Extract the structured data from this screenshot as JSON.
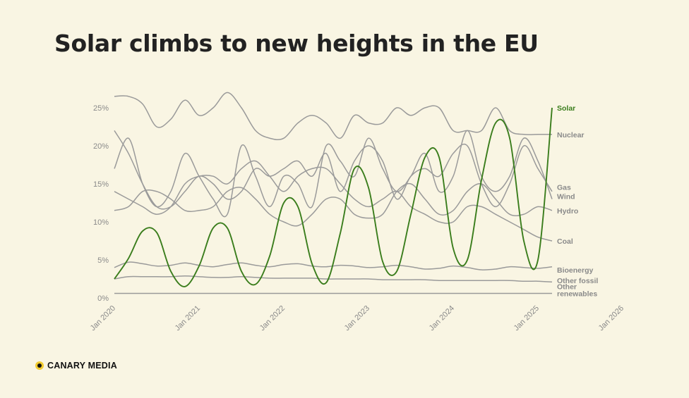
{
  "title": "Solar climbs to new heights in the EU",
  "brand": {
    "name": "CANARY MEDIA",
    "logo_icon": "canary-dot-icon",
    "dot_color": "#f2cb2f"
  },
  "chart_data": {
    "type": "line",
    "y_ticks": [
      "0%",
      "5%",
      "10%",
      "15%",
      "20%",
      "25%"
    ],
    "ylim": [
      0,
      25
    ],
    "x_ticks": [
      "Jan 2020",
      "Jan 2021",
      "Jan 2022",
      "Jan 2023",
      "Jan 2024",
      "Jan 2025",
      "Jan 2026"
    ],
    "xlim": [
      "2020-01",
      "2026-05"
    ],
    "x_step_months": 2,
    "series": [
      {
        "name": "Nuclear",
        "color": "#9a9a9a",
        "values": [
          26.5,
          26.5,
          25.5,
          22.5,
          23.5,
          26,
          24,
          25,
          27,
          25,
          22,
          21,
          21,
          23,
          24,
          23,
          21,
          24,
          23,
          23,
          25,
          24,
          25,
          25,
          22,
          22,
          22,
          25,
          22,
          21.5,
          21.5,
          21.5
        ]
      },
      {
        "name": "Gas",
        "color": "#9a9a9a",
        "values": [
          22,
          19,
          15,
          12,
          12,
          14,
          16,
          15,
          13,
          14,
          17,
          16,
          17,
          18,
          16,
          19,
          14,
          18,
          20,
          18,
          13,
          16,
          17,
          16,
          19,
          20,
          15,
          12,
          15,
          20,
          17,
          14
        ]
      },
      {
        "name": "Wind",
        "color": "#9a9a9a",
        "values": [
          17,
          21,
          15,
          12,
          14,
          19,
          16,
          13,
          11,
          20,
          16,
          12,
          16,
          15,
          12,
          20,
          18,
          16,
          21,
          17,
          14,
          16,
          19,
          14,
          16,
          22,
          16,
          14,
          16,
          21,
          18,
          13
        ]
      },
      {
        "name": "Hydro",
        "color": "#9a9a9a",
        "values": [
          11.5,
          12,
          14,
          14,
          13,
          11.5,
          11.5,
          12,
          14,
          14.5,
          13,
          11,
          10,
          9.5,
          11,
          13,
          13,
          11,
          10.5,
          11,
          14,
          15,
          13,
          11,
          11.5,
          14,
          15,
          13,
          11,
          11,
          12,
          11.5
        ]
      },
      {
        "name": "Coal",
        "color": "#9a9a9a",
        "values": [
          14,
          13,
          12,
          11,
          12,
          15,
          16,
          16,
          15,
          17,
          18,
          16,
          14,
          16,
          17,
          17,
          15,
          13,
          12,
          13,
          14,
          12,
          11,
          10,
          10,
          12,
          12,
          11,
          10,
          9,
          8,
          7.5
        ]
      },
      {
        "name": "Bioenergy",
        "color": "#9a9a9a",
        "values": [
          4,
          4.7,
          4.5,
          4.2,
          4.3,
          4.6,
          4.3,
          4.1,
          4.4,
          4.6,
          4.3,
          4.1,
          4.4,
          4.5,
          4.2,
          4.1,
          4.3,
          4.2,
          4,
          4.1,
          4.3,
          4.1,
          3.8,
          3.9,
          4.2,
          4,
          3.7,
          3.8,
          4.1,
          4,
          3.9,
          4.1
        ]
      },
      {
        "name": "Other fossil",
        "color": "#9a9a9a",
        "values": [
          2.5,
          2.8,
          2.8,
          2.8,
          2.8,
          2.9,
          2.8,
          2.7,
          2.7,
          2.8,
          2.7,
          2.6,
          2.6,
          2.6,
          2.6,
          2.5,
          2.5,
          2.5,
          2.5,
          2.4,
          2.4,
          2.4,
          2.4,
          2.3,
          2.3,
          2.3,
          2.3,
          2.3,
          2.3,
          2.2,
          2.2,
          2.1
        ]
      },
      {
        "name": "Other renewables",
        "color": "#9a9a9a",
        "values": [
          0.6,
          0.6,
          0.6,
          0.6,
          0.6,
          0.6,
          0.6,
          0.6,
          0.6,
          0.6,
          0.6,
          0.6,
          0.6,
          0.6,
          0.6,
          0.6,
          0.6,
          0.6,
          0.6,
          0.6,
          0.6,
          0.6,
          0.6,
          0.6,
          0.6,
          0.6,
          0.6,
          0.6,
          0.6,
          0.6,
          0.6,
          0.6
        ]
      },
      {
        "name": "Solar",
        "color": "#3a7d1c",
        "values": [
          2.5,
          5.2,
          8.8,
          8.6,
          3.5,
          1.5,
          4.2,
          9.2,
          9.2,
          3.5,
          1.8,
          5.5,
          12.5,
          12,
          4.5,
          2.0,
          8.5,
          17,
          14.5,
          4.8,
          3.5,
          11,
          18.5,
          18.5,
          6.5,
          5.0,
          15.5,
          23,
          21,
          7.5,
          5.0,
          25
        ]
      }
    ]
  }
}
